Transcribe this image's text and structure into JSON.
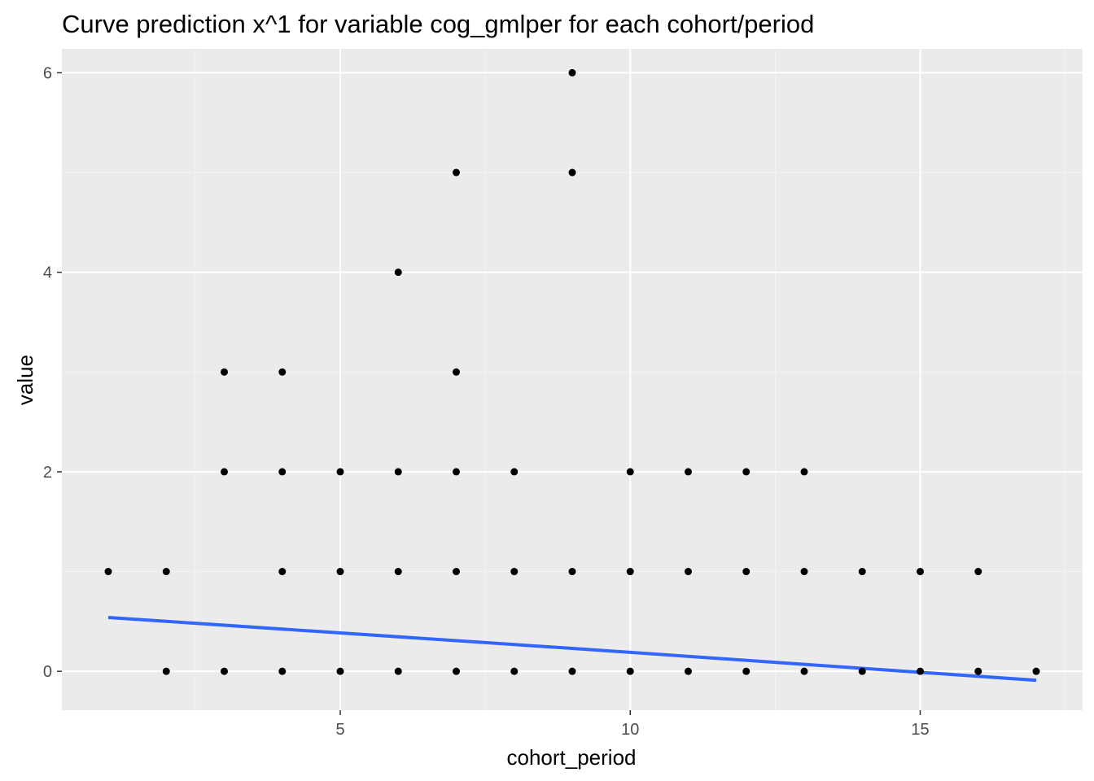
{
  "chart_data": {
    "type": "scatter",
    "title": "Curve prediction x^1  for variable cog_gmlper for each cohort/period",
    "xlabel": "cohort_period",
    "ylabel": "value",
    "xlim": [
      0.2,
      17.8
    ],
    "ylim": [
      -0.39,
      6.24
    ],
    "x_ticks": [
      5,
      10,
      15
    ],
    "y_ticks": [
      0,
      2,
      4,
      6
    ],
    "x_tick_labels": [
      "5",
      "10",
      "15"
    ],
    "y_tick_labels": [
      "0",
      "2",
      "4",
      "6"
    ],
    "grid": true,
    "legend": "none",
    "colors": {
      "panel_background": "#ebebeb",
      "grid_major": "#ffffff",
      "grid_minor": "#f4f4f4",
      "points": "#000000",
      "trend_line": "#3366ff"
    },
    "points": [
      {
        "x": 1,
        "y": 1
      },
      {
        "x": 2,
        "y": 0
      },
      {
        "x": 2,
        "y": 1
      },
      {
        "x": 3,
        "y": 0
      },
      {
        "x": 3,
        "y": 2
      },
      {
        "x": 3,
        "y": 3
      },
      {
        "x": 4,
        "y": 0
      },
      {
        "x": 4,
        "y": 1
      },
      {
        "x": 4,
        "y": 2
      },
      {
        "x": 4,
        "y": 3
      },
      {
        "x": 5,
        "y": 0
      },
      {
        "x": 5,
        "y": 1
      },
      {
        "x": 5,
        "y": 2
      },
      {
        "x": 6,
        "y": 0
      },
      {
        "x": 6,
        "y": 1
      },
      {
        "x": 6,
        "y": 2
      },
      {
        "x": 6,
        "y": 4
      },
      {
        "x": 7,
        "y": 0
      },
      {
        "x": 7,
        "y": 1
      },
      {
        "x": 7,
        "y": 2
      },
      {
        "x": 7,
        "y": 3
      },
      {
        "x": 7,
        "y": 5
      },
      {
        "x": 8,
        "y": 0
      },
      {
        "x": 8,
        "y": 1
      },
      {
        "x": 8,
        "y": 2
      },
      {
        "x": 9,
        "y": 0
      },
      {
        "x": 9,
        "y": 1
      },
      {
        "x": 9,
        "y": 5
      },
      {
        "x": 9,
        "y": 6
      },
      {
        "x": 10,
        "y": 0
      },
      {
        "x": 10,
        "y": 1
      },
      {
        "x": 10,
        "y": 2
      },
      {
        "x": 11,
        "y": 0
      },
      {
        "x": 11,
        "y": 1
      },
      {
        "x": 11,
        "y": 2
      },
      {
        "x": 12,
        "y": 0
      },
      {
        "x": 12,
        "y": 1
      },
      {
        "x": 12,
        "y": 2
      },
      {
        "x": 13,
        "y": 0
      },
      {
        "x": 13,
        "y": 1
      },
      {
        "x": 13,
        "y": 2
      },
      {
        "x": 14,
        "y": 0
      },
      {
        "x": 14,
        "y": 1
      },
      {
        "x": 15,
        "y": 0
      },
      {
        "x": 15,
        "y": 1
      },
      {
        "x": 16,
        "y": 0
      },
      {
        "x": 16,
        "y": 1
      },
      {
        "x": 17,
        "y": 0
      }
    ],
    "trend_line": {
      "x": [
        1,
        9,
        17
      ],
      "y": [
        0.54,
        0.23,
        -0.09
      ]
    }
  }
}
